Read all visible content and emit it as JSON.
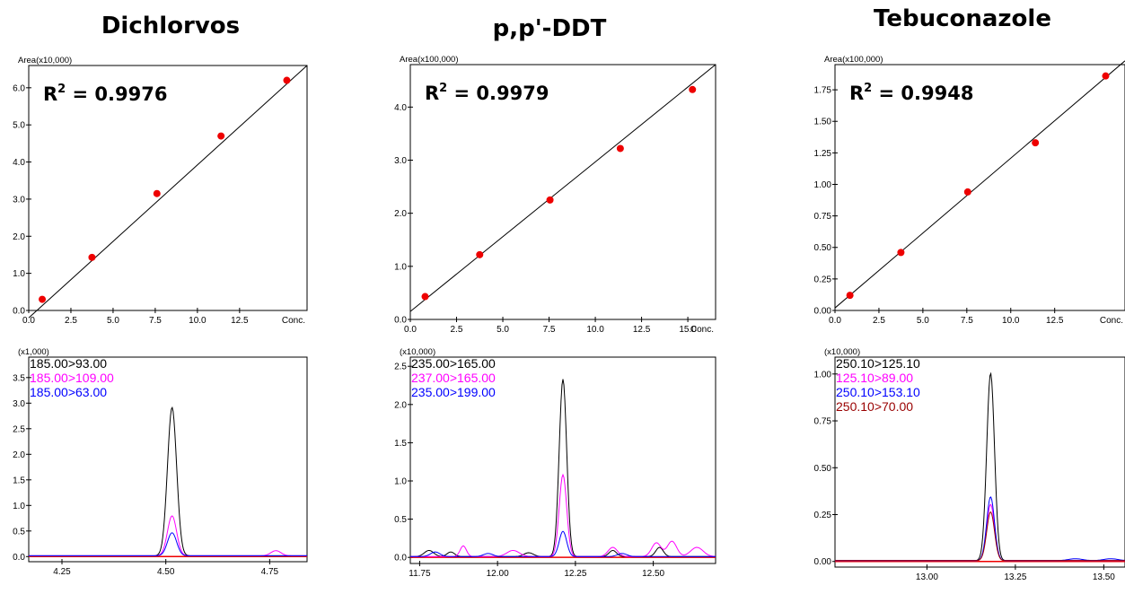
{
  "titles": [
    "Dichlorvos",
    "p,p'-DDT",
    "Tebuconazole"
  ],
  "colors": {
    "black": "#000000",
    "magenta": "#ff00ff",
    "blue": "#0000ff",
    "darkred": "#990000",
    "red": "#ee0000"
  },
  "chart_data": [
    {
      "type": "scatter",
      "panel": "Dichlorvos calibration",
      "ylabel": "Area(x10,000)",
      "x_axis_end_label": "Conc.",
      "x_ticks": [
        "0.0",
        "2.5",
        "5.0",
        "7.5",
        "10.0",
        "12.5"
      ],
      "y_ticks": [
        "0.0",
        "1.0",
        "2.0",
        "3.0",
        "4.0",
        "5.0",
        "6.0"
      ],
      "xlim": [
        0,
        16.5
      ],
      "ylim": [
        0,
        6.6
      ],
      "r2_prefix": "R",
      "r2_exp": "2",
      "r2_value": " = 0.9976",
      "points": {
        "x": [
          0.8,
          3.75,
          7.6,
          11.4,
          15.3
        ],
        "y": [
          0.3,
          1.43,
          3.15,
          4.7,
          6.2
        ]
      },
      "fit_line": {
        "x": [
          0,
          16.5
        ],
        "y": [
          -0.2,
          6.6
        ]
      }
    },
    {
      "type": "scatter",
      "panel": "p,p'-DDT calibration",
      "ylabel": "Area(x100,000)",
      "x_axis_end_label": "Conc.",
      "x_ticks": [
        "0.0",
        "2.5",
        "5.0",
        "7.5",
        "10.0",
        "12.5",
        "15.0"
      ],
      "y_ticks": [
        "0.0",
        "1.0",
        "2.0",
        "3.0",
        "4.0"
      ],
      "xlim": [
        0,
        16.5
      ],
      "ylim": [
        0,
        4.8
      ],
      "r2_prefix": "R",
      "r2_exp": "2",
      "r2_value": " = 0.9979",
      "points": {
        "x": [
          0.8,
          3.75,
          7.55,
          11.35,
          15.25
        ],
        "y": [
          0.43,
          1.22,
          2.25,
          3.22,
          4.33
        ]
      },
      "fit_line": {
        "x": [
          0,
          16.5
        ],
        "y": [
          0.15,
          4.8
        ]
      }
    },
    {
      "type": "scatter",
      "panel": "Tebuconazole calibration",
      "ylabel": "Area(x100,000)",
      "x_axis_end_label": "Conc.",
      "x_ticks": [
        "0.0",
        "2.5",
        "5.0",
        "7.5",
        "10.0",
        "12.5"
      ],
      "y_ticks": [
        "0.00",
        "0.25",
        "0.50",
        "0.75",
        "1.00",
        "1.25",
        "1.50",
        "1.75"
      ],
      "xlim": [
        0,
        16.5
      ],
      "ylim": [
        0,
        1.95
      ],
      "r2_prefix": "R",
      "r2_exp": "2",
      "r2_value": " = 0.9948",
      "points": {
        "x": [
          0.85,
          3.75,
          7.55,
          11.4,
          15.4
        ],
        "y": [
          0.12,
          0.46,
          0.94,
          1.33,
          1.86
        ]
      },
      "fit_line": {
        "x": [
          0,
          16.5
        ],
        "y": [
          0.02,
          1.98
        ]
      }
    },
    {
      "type": "line",
      "panel": "Dichlorvos chromatogram",
      "ylabel": "(x1,000)",
      "x_ticks": [
        "4.25",
        "4.50",
        "4.75"
      ],
      "y_ticks": [
        "0.0",
        "0.5",
        "1.0",
        "1.5",
        "2.0",
        "2.5",
        "3.0",
        "3.5"
      ],
      "xlim": [
        4.17,
        4.84
      ],
      "ylim": [
        -0.1,
        3.9
      ],
      "series": [
        {
          "name": "185.00>93.00",
          "color": "black",
          "peaks": [
            [
              4.515,
              2.9,
              0.011
            ]
          ]
        },
        {
          "name": "185.00>109.00",
          "color": "magenta",
          "peaks": [
            [
              4.515,
              0.78,
              0.011
            ],
            [
              4.765,
              0.1,
              0.012
            ]
          ]
        },
        {
          "name": "185.00>63.00",
          "color": "blue",
          "peaks": [
            [
              4.515,
              0.45,
              0.011
            ]
          ]
        }
      ]
    },
    {
      "type": "line",
      "panel": "p,p'-DDT chromatogram",
      "ylabel": "(x10,000)",
      "x_ticks": [
        "11.75",
        "12.00",
        "12.25",
        "12.50"
      ],
      "y_ticks": [
        "0.0",
        "0.5",
        "1.0",
        "1.5",
        "2.0",
        "2.5"
      ],
      "xlim": [
        11.72,
        12.7
      ],
      "ylim": [
        -0.08,
        2.62
      ],
      "series": [
        {
          "name": "235.00>165.00",
          "color": "black",
          "peaks": [
            [
              12.21,
              2.32,
              0.012
            ],
            [
              11.78,
              0.08,
              0.015
            ],
            [
              11.85,
              0.06,
              0.012
            ],
            [
              12.1,
              0.05,
              0.015
            ],
            [
              12.37,
              0.08,
              0.012
            ],
            [
              12.52,
              0.12,
              0.012
            ]
          ]
        },
        {
          "name": "237.00>165.00",
          "color": "magenta",
          "peaks": [
            [
              12.21,
              1.07,
              0.012
            ],
            [
              11.89,
              0.14,
              0.01
            ],
            [
              12.05,
              0.08,
              0.02
            ],
            [
              12.37,
              0.12,
              0.015
            ],
            [
              12.51,
              0.18,
              0.015
            ],
            [
              12.56,
              0.2,
              0.015
            ],
            [
              12.64,
              0.12,
              0.02
            ]
          ]
        },
        {
          "name": "235.00>199.00",
          "color": "blue",
          "peaks": [
            [
              12.21,
              0.33,
              0.012
            ],
            [
              11.8,
              0.06,
              0.015
            ],
            [
              11.97,
              0.04,
              0.015
            ],
            [
              12.4,
              0.04,
              0.015
            ]
          ]
        }
      ]
    },
    {
      "type": "line",
      "panel": "Tebuconazole chromatogram",
      "ylabel": "(x10,000)",
      "x_ticks": [
        "13.00",
        "13.25",
        "13.50"
      ],
      "y_ticks": [
        "0.00",
        "0.25",
        "0.50",
        "0.75",
        "1.00"
      ],
      "xlim": [
        12.74,
        13.56
      ],
      "ylim": [
        -0.03,
        1.09
      ],
      "series": [
        {
          "name": "250.10>125.10",
          "color": "black",
          "peaks": [
            [
              13.18,
              1.0,
              0.011
            ]
          ]
        },
        {
          "name": "125.10>89.00",
          "color": "magenta",
          "peaks": [
            [
              13.18,
              0.3,
              0.011
            ]
          ]
        },
        {
          "name": "250.10>153.10",
          "color": "blue",
          "peaks": [
            [
              13.18,
              0.34,
              0.011
            ],
            [
              13.42,
              0.01,
              0.02
            ],
            [
              13.52,
              0.01,
              0.02
            ]
          ]
        },
        {
          "name": "250.10>70.00",
          "color": "darkred",
          "peaks": [
            [
              13.18,
              0.26,
              0.011
            ]
          ]
        }
      ]
    }
  ]
}
